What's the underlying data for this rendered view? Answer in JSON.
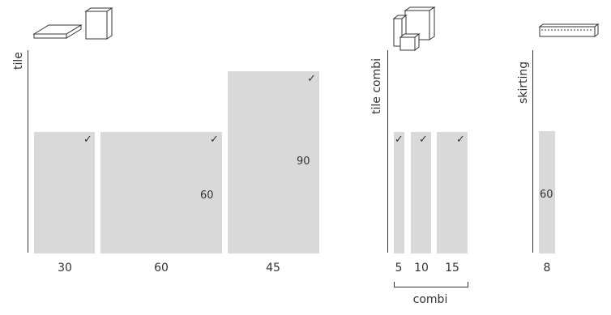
{
  "colors": {
    "tile": "#d9d9d9",
    "line": "#333333",
    "background": "#ffffff"
  },
  "groups": {
    "tile": {
      "label": "tile",
      "icons": [
        "flat-tile-icon",
        "cube-tile-icon"
      ],
      "items": [
        {
          "x_label": "30",
          "value_label": "",
          "check": "✓"
        },
        {
          "x_label": "60",
          "value_label": "60",
          "check": "✓"
        },
        {
          "x_label": "45",
          "value_label": "90",
          "check": "✓"
        }
      ]
    },
    "tile_combi": {
      "label": "tile combi",
      "icons": [
        "stacked-tiles-icon"
      ],
      "items": [
        {
          "x_label": "5",
          "check": "✓"
        },
        {
          "x_label": "10",
          "check": "✓"
        },
        {
          "x_label": "15",
          "check": "✓"
        }
      ],
      "bracket_label": "combi"
    },
    "skirting": {
      "label": "skirting",
      "icons": [
        "skirting-board-icon"
      ],
      "items": [
        {
          "x_label": "8",
          "value_label": "60"
        }
      ]
    }
  }
}
